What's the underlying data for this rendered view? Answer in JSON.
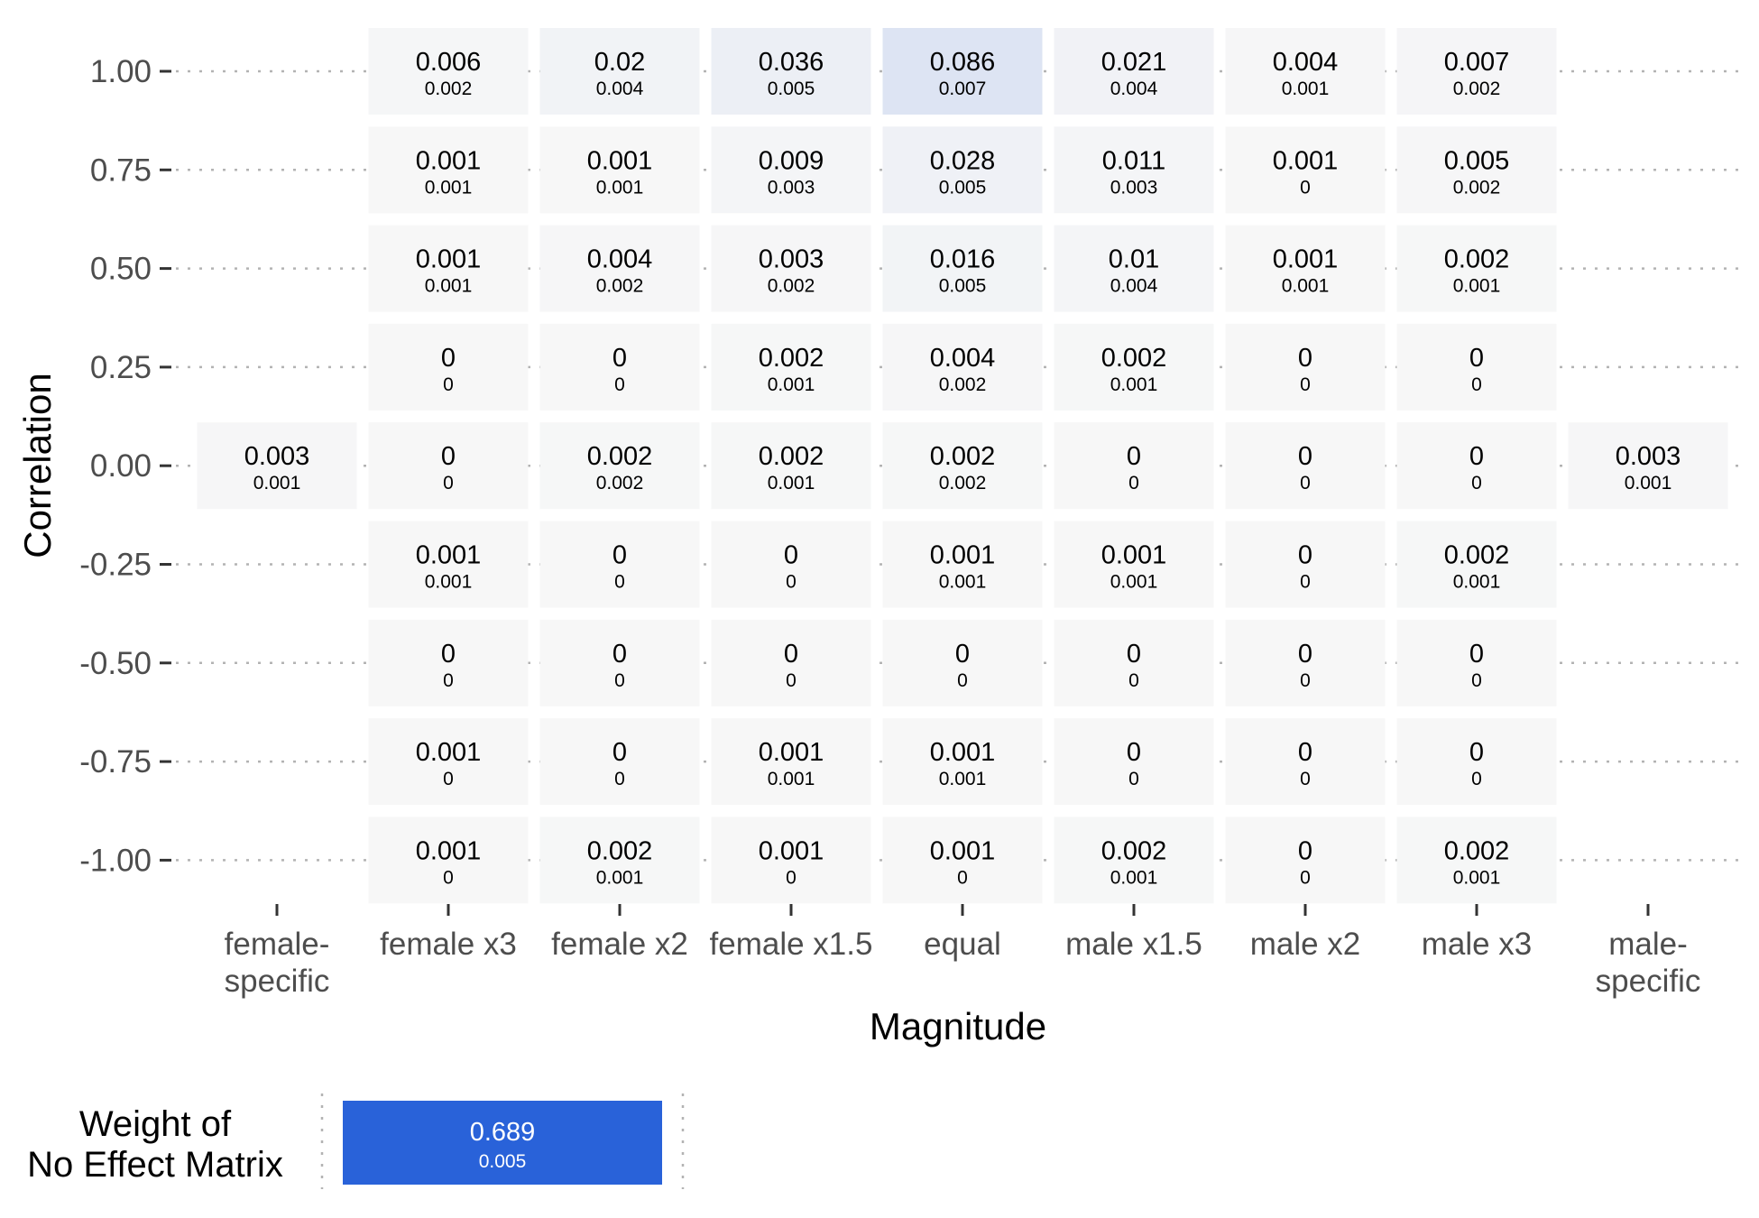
{
  "chart_data": {
    "type": "heatmap",
    "xlabel": "Magnitude",
    "ylabel": "Correlation",
    "x_categories": [
      [
        "female-",
        "specific"
      ],
      [
        "female x3"
      ],
      [
        "female x2"
      ],
      [
        "female x1.5"
      ],
      [
        "equal"
      ],
      [
        "male x1.5"
      ],
      [
        "male x2"
      ],
      [
        "male x3"
      ],
      [
        "male-",
        "specific"
      ]
    ],
    "y_categories": [
      "1.00",
      "0.75",
      "0.50",
      "0.25",
      "0.00",
      "-0.25",
      "-0.50",
      "-0.75",
      "-1.00"
    ],
    "color_scale": {
      "low": "#f7f7f7",
      "high": "#2962d9",
      "min": 0,
      "max": 0.689
    },
    "cells": [
      {
        "x": 1,
        "y": 0,
        "value": "0.006",
        "se": "0.002"
      },
      {
        "x": 2,
        "y": 0,
        "value": "0.02",
        "se": "0.004"
      },
      {
        "x": 3,
        "y": 0,
        "value": "0.036",
        "se": "0.005"
      },
      {
        "x": 4,
        "y": 0,
        "value": "0.086",
        "se": "0.007"
      },
      {
        "x": 5,
        "y": 0,
        "value": "0.021",
        "se": "0.004"
      },
      {
        "x": 6,
        "y": 0,
        "value": "0.004",
        "se": "0.001"
      },
      {
        "x": 7,
        "y": 0,
        "value": "0.007",
        "se": "0.002"
      },
      {
        "x": 1,
        "y": 1,
        "value": "0.001",
        "se": "0.001"
      },
      {
        "x": 2,
        "y": 1,
        "value": "0.001",
        "se": "0.001"
      },
      {
        "x": 3,
        "y": 1,
        "value": "0.009",
        "se": "0.003"
      },
      {
        "x": 4,
        "y": 1,
        "value": "0.028",
        "se": "0.005"
      },
      {
        "x": 5,
        "y": 1,
        "value": "0.011",
        "se": "0.003"
      },
      {
        "x": 6,
        "y": 1,
        "value": "0.001",
        "se": "0"
      },
      {
        "x": 7,
        "y": 1,
        "value": "0.005",
        "se": "0.002"
      },
      {
        "x": 1,
        "y": 2,
        "value": "0.001",
        "se": "0.001"
      },
      {
        "x": 2,
        "y": 2,
        "value": "0.004",
        "se": "0.002"
      },
      {
        "x": 3,
        "y": 2,
        "value": "0.003",
        "se": "0.002"
      },
      {
        "x": 4,
        "y": 2,
        "value": "0.016",
        "se": "0.005"
      },
      {
        "x": 5,
        "y": 2,
        "value": "0.01",
        "se": "0.004"
      },
      {
        "x": 6,
        "y": 2,
        "value": "0.001",
        "se": "0.001"
      },
      {
        "x": 7,
        "y": 2,
        "value": "0.002",
        "se": "0.001"
      },
      {
        "x": 1,
        "y": 3,
        "value": "0",
        "se": "0"
      },
      {
        "x": 2,
        "y": 3,
        "value": "0",
        "se": "0"
      },
      {
        "x": 3,
        "y": 3,
        "value": "0.002",
        "se": "0.001"
      },
      {
        "x": 4,
        "y": 3,
        "value": "0.004",
        "se": "0.002"
      },
      {
        "x": 5,
        "y": 3,
        "value": "0.002",
        "se": "0.001"
      },
      {
        "x": 6,
        "y": 3,
        "value": "0",
        "se": "0"
      },
      {
        "x": 7,
        "y": 3,
        "value": "0",
        "se": "0"
      },
      {
        "x": 0,
        "y": 4,
        "value": "0.003",
        "se": "0.001"
      },
      {
        "x": 1,
        "y": 4,
        "value": "0",
        "se": "0"
      },
      {
        "x": 2,
        "y": 4,
        "value": "0.002",
        "se": "0.002"
      },
      {
        "x": 3,
        "y": 4,
        "value": "0.002",
        "se": "0.001"
      },
      {
        "x": 4,
        "y": 4,
        "value": "0.002",
        "se": "0.002"
      },
      {
        "x": 5,
        "y": 4,
        "value": "0",
        "se": "0"
      },
      {
        "x": 6,
        "y": 4,
        "value": "0",
        "se": "0"
      },
      {
        "x": 7,
        "y": 4,
        "value": "0",
        "se": "0"
      },
      {
        "x": 8,
        "y": 4,
        "value": "0.003",
        "se": "0.001"
      },
      {
        "x": 1,
        "y": 5,
        "value": "0.001",
        "se": "0.001"
      },
      {
        "x": 2,
        "y": 5,
        "value": "0",
        "se": "0"
      },
      {
        "x": 3,
        "y": 5,
        "value": "0",
        "se": "0"
      },
      {
        "x": 4,
        "y": 5,
        "value": "0.001",
        "se": "0.001"
      },
      {
        "x": 5,
        "y": 5,
        "value": "0.001",
        "se": "0.001"
      },
      {
        "x": 6,
        "y": 5,
        "value": "0",
        "se": "0"
      },
      {
        "x": 7,
        "y": 5,
        "value": "0.002",
        "se": "0.001"
      },
      {
        "x": 1,
        "y": 6,
        "value": "0",
        "se": "0"
      },
      {
        "x": 2,
        "y": 6,
        "value": "0",
        "se": "0"
      },
      {
        "x": 3,
        "y": 6,
        "value": "0",
        "se": "0"
      },
      {
        "x": 4,
        "y": 6,
        "value": "0",
        "se": "0"
      },
      {
        "x": 5,
        "y": 6,
        "value": "0",
        "se": "0"
      },
      {
        "x": 6,
        "y": 6,
        "value": "0",
        "se": "0"
      },
      {
        "x": 7,
        "y": 6,
        "value": "0",
        "se": "0"
      },
      {
        "x": 1,
        "y": 7,
        "value": "0.001",
        "se": "0"
      },
      {
        "x": 2,
        "y": 7,
        "value": "0",
        "se": "0"
      },
      {
        "x": 3,
        "y": 7,
        "value": "0.001",
        "se": "0.001"
      },
      {
        "x": 4,
        "y": 7,
        "value": "0.001",
        "se": "0.001"
      },
      {
        "x": 5,
        "y": 7,
        "value": "0",
        "se": "0"
      },
      {
        "x": 6,
        "y": 7,
        "value": "0",
        "se": "0"
      },
      {
        "x": 7,
        "y": 7,
        "value": "0",
        "se": "0"
      },
      {
        "x": 1,
        "y": 8,
        "value": "0.001",
        "se": "0"
      },
      {
        "x": 2,
        "y": 8,
        "value": "0.002",
        "se": "0.001"
      },
      {
        "x": 3,
        "y": 8,
        "value": "0.001",
        "se": "0"
      },
      {
        "x": 4,
        "y": 8,
        "value": "0.001",
        "se": "0"
      },
      {
        "x": 5,
        "y": 8,
        "value": "0.002",
        "se": "0.001"
      },
      {
        "x": 6,
        "y": 8,
        "value": "0",
        "se": "0"
      },
      {
        "x": 7,
        "y": 8,
        "value": "0.002",
        "se": "0.001"
      }
    ],
    "no_effect": {
      "label_lines": [
        "Weight of",
        "No Effect Matrix"
      ],
      "value": "0.689",
      "se": "0.005"
    },
    "grid": "dotted-horizontal"
  }
}
